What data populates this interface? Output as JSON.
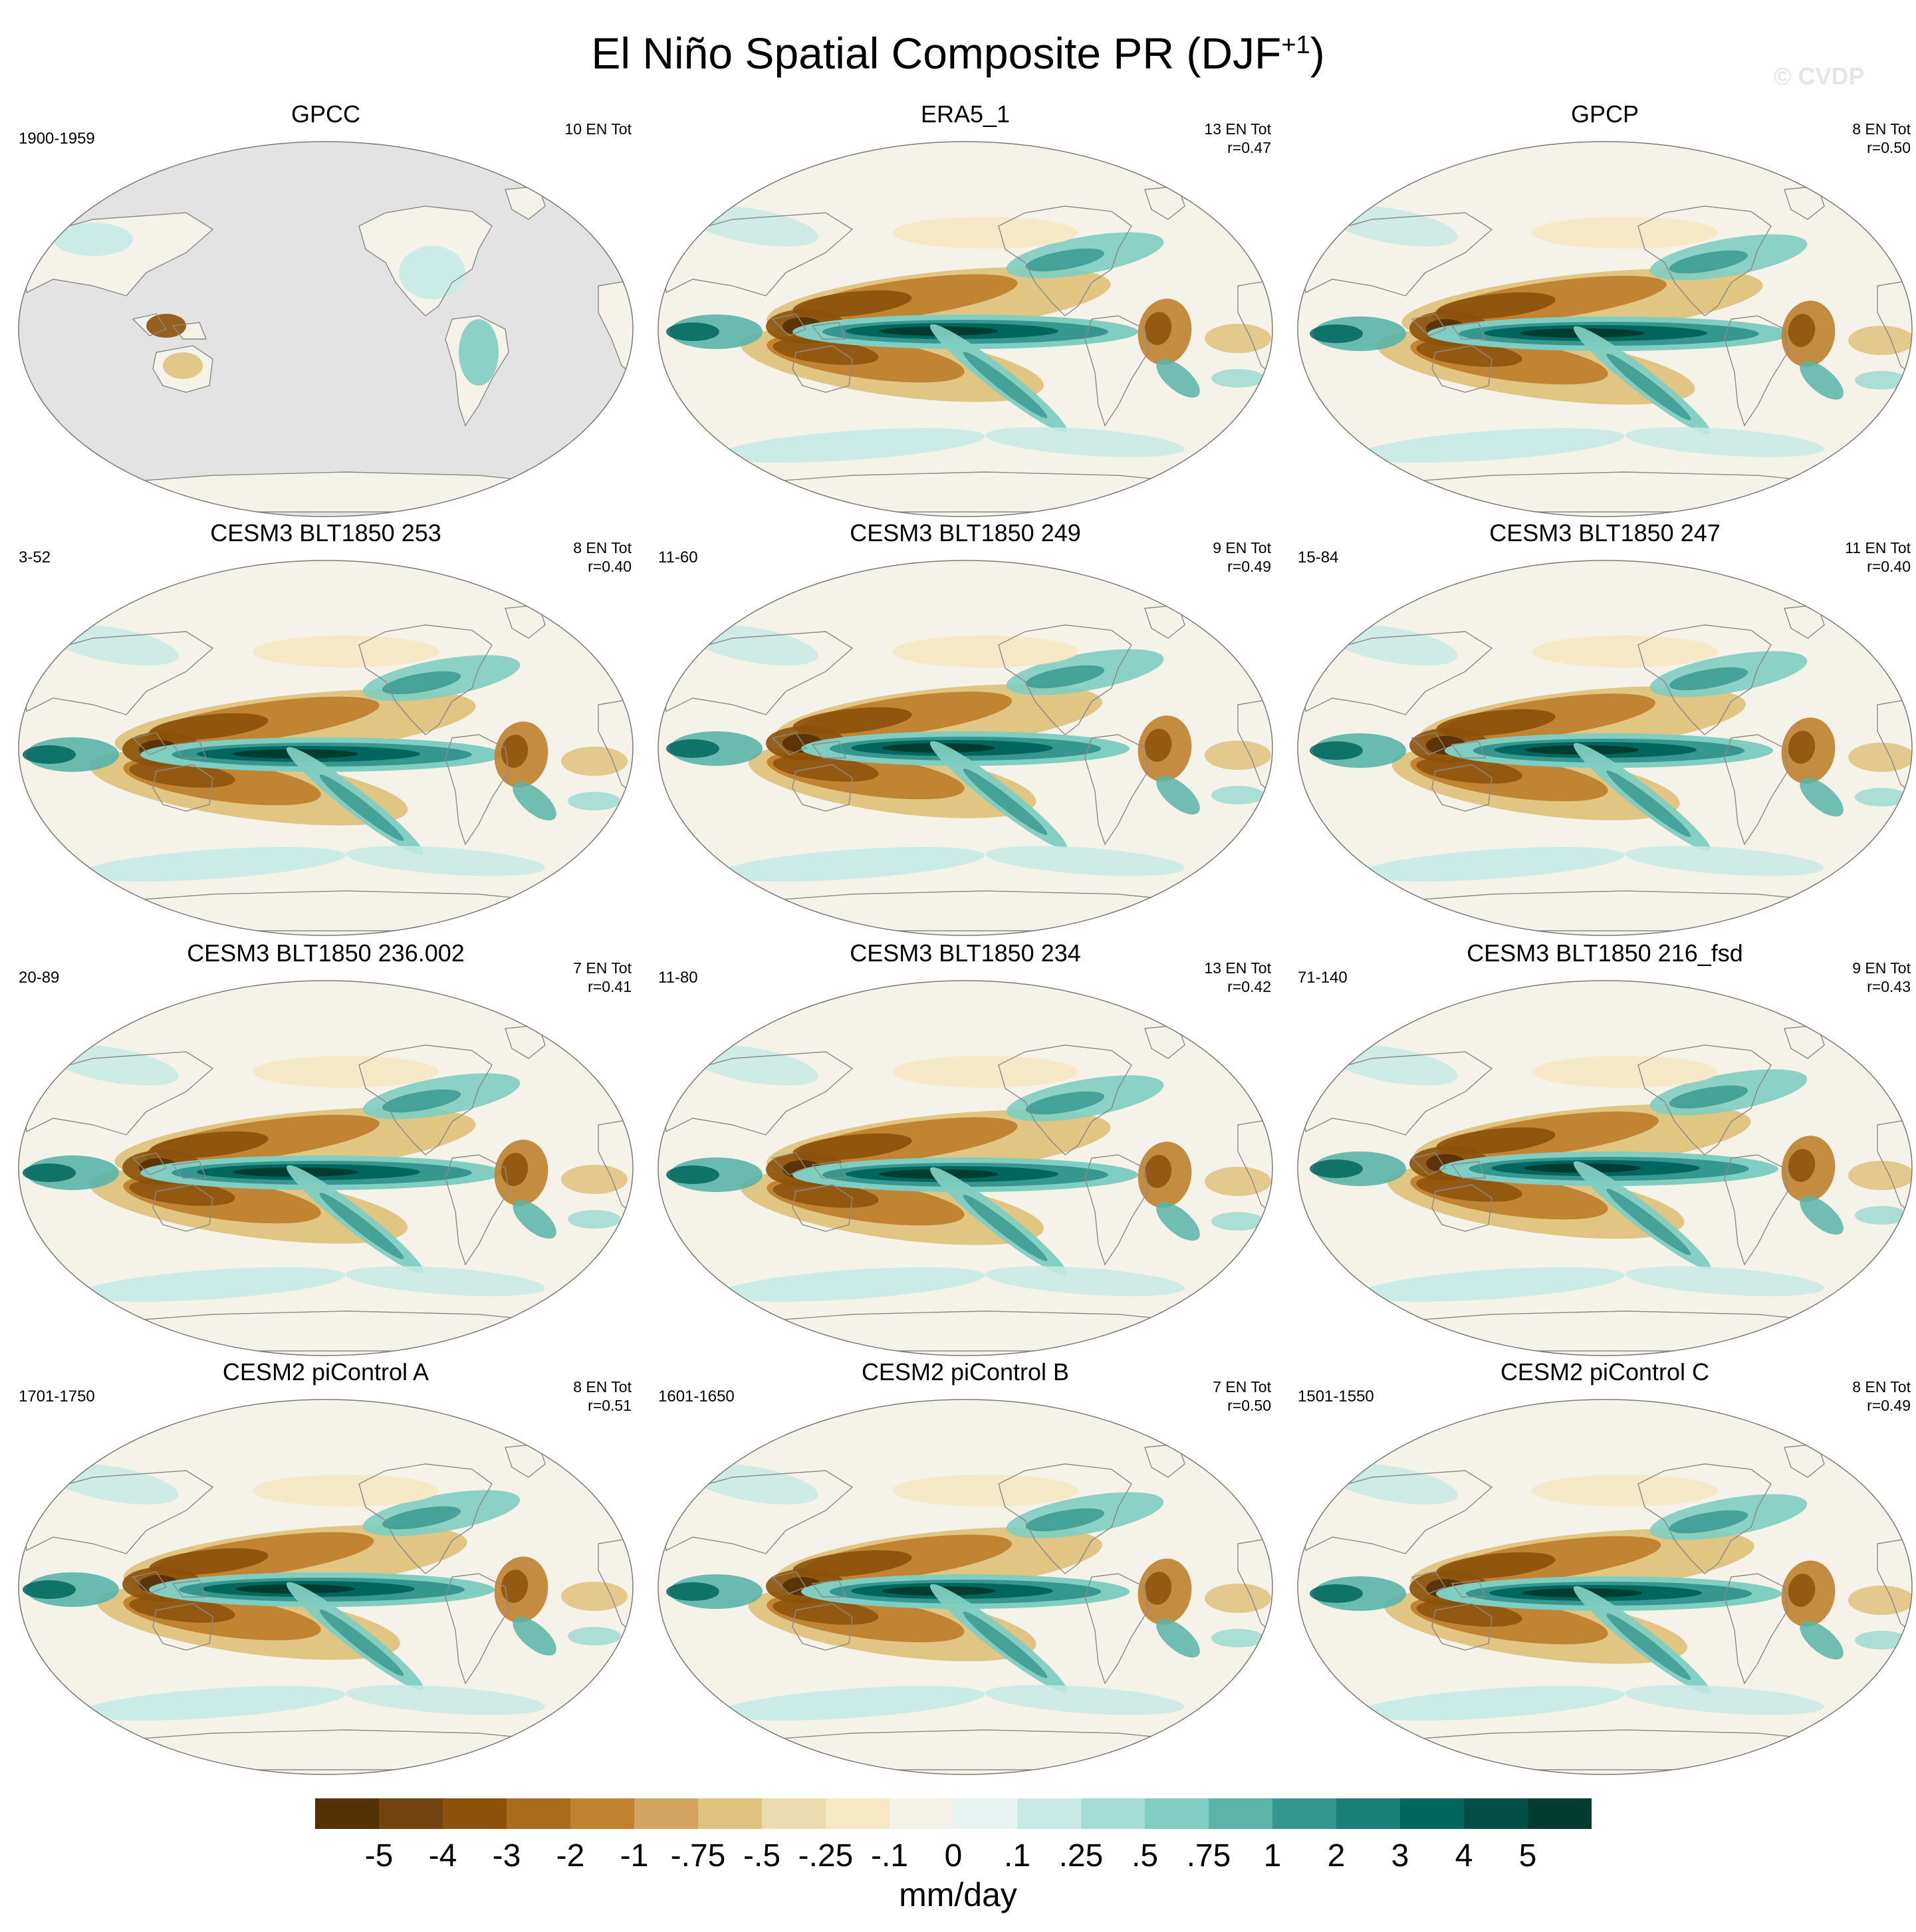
{
  "figure": {
    "title_main": "El Niño Spatial Composite PR (DJF",
    "title_sup": "+1",
    "title_end": ")",
    "watermark": "© CVDP"
  },
  "colors": {
    "land_mask": "#e3e3e3",
    "coast": "#8a8a8a",
    "background": "#ffffff"
  },
  "panels": [
    {
      "title": "GPCC",
      "left": "1900-1959",
      "right1": "10 EN Tot",
      "right2": "",
      "mode": "obs_land"
    },
    {
      "title": "ERA5_1",
      "left": "",
      "right1": "13 EN Tot",
      "right2": "r=0.47",
      "mode": "full"
    },
    {
      "title": "GPCP",
      "left": "",
      "right1": "8 EN Tot",
      "right2": "r=0.50",
      "mode": "full"
    },
    {
      "title": "CESM3 BLT1850 253",
      "left": "3-52",
      "right1": "8 EN Tot",
      "right2": "r=0.40",
      "mode": "full"
    },
    {
      "title": "CESM3 BLT1850 249",
      "left": "11-60",
      "right1": "9 EN Tot",
      "right2": "r=0.49",
      "mode": "full"
    },
    {
      "title": "CESM3 BLT1850 247",
      "left": "15-84",
      "right1": "11 EN Tot",
      "right2": "r=0.40",
      "mode": "full"
    },
    {
      "title": "CESM3 BLT1850 236.002",
      "left": "20-89",
      "right1": "7 EN Tot",
      "right2": "r=0.41",
      "mode": "full"
    },
    {
      "title": "CESM3 BLT1850 234",
      "left": "11-80",
      "right1": "13 EN Tot",
      "right2": "r=0.42",
      "mode": "full"
    },
    {
      "title": "CESM3 BLT1850 216_fsd",
      "left": "71-140",
      "right1": "9 EN Tot",
      "right2": "r=0.43",
      "mode": "full"
    },
    {
      "title": "CESM2 piControl A",
      "left": "1701-1750",
      "right1": "8 EN Tot",
      "right2": "r=0.51",
      "mode": "full"
    },
    {
      "title": "CESM2 piControl B",
      "left": "1601-1650",
      "right1": "7 EN Tot",
      "right2": "r=0.50",
      "mode": "full"
    },
    {
      "title": "CESM2 piControl C",
      "left": "1501-1550",
      "right1": "8 EN Tot",
      "right2": "r=0.49",
      "mode": "full"
    }
  ],
  "colorbar": {
    "units": "mm/day",
    "labels": [
      "-5",
      "-4",
      "-3",
      "-2",
      "-1",
      "-.75",
      "-.5",
      "-.25",
      "-.1",
      "0",
      ".1",
      ".25",
      ".5",
      ".75",
      "1",
      "2",
      "3",
      "4",
      "5"
    ],
    "colors": [
      "#543005",
      "#744410",
      "#8c510a",
      "#a96c1d",
      "#bf812d",
      "#d2a460",
      "#dfc27d",
      "#eddbb0",
      "#f6e8c3",
      "#f5f2ea",
      "#e8f4f2",
      "#c7eae5",
      "#a3ddd4",
      "#80cdc1",
      "#5ab4a8",
      "#35978f",
      "#1a7f77",
      "#01665e",
      "#024f47",
      "#003c30"
    ]
  }
}
